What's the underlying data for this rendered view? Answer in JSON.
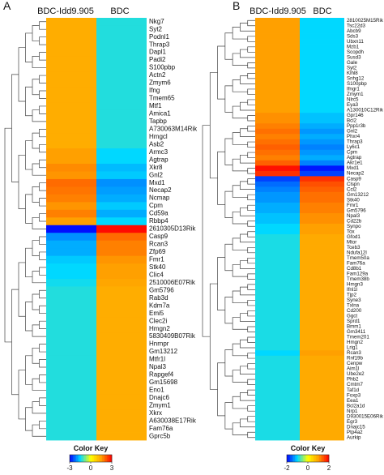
{
  "chart_data": [
    {
      "type": "heatmap",
      "panel_label": "A",
      "columns": [
        "BDC-Idd9.905",
        "BDC"
      ],
      "rows": [
        {
          "gene": "Nkg7",
          "values": [
            1.3,
            -1.3
          ]
        },
        {
          "gene": "Syt2",
          "values": [
            1.3,
            -1.3
          ]
        },
        {
          "gene": "Podnl1",
          "values": [
            1.3,
            -1.3
          ]
        },
        {
          "gene": "Thrap3",
          "values": [
            1.3,
            -1.3
          ]
        },
        {
          "gene": "Dapl1",
          "values": [
            1.3,
            -1.3
          ]
        },
        {
          "gene": "Padi2",
          "values": [
            1.3,
            -1.3
          ]
        },
        {
          "gene": "S100pbp",
          "values": [
            1.3,
            -1.3
          ]
        },
        {
          "gene": "Actn2",
          "values": [
            1.3,
            -1.3
          ]
        },
        {
          "gene": "Zmym6",
          "values": [
            1.3,
            -1.3
          ]
        },
        {
          "gene": "Ifng",
          "values": [
            1.3,
            -1.3
          ]
        },
        {
          "gene": "Tmem65",
          "values": [
            1.3,
            -1.3
          ]
        },
        {
          "gene": "Mtf1",
          "values": [
            1.3,
            -1.3
          ]
        },
        {
          "gene": "Amica1",
          "values": [
            1.3,
            -1.3
          ]
        },
        {
          "gene": "Tapbp",
          "values": [
            1.3,
            -1.3
          ]
        },
        {
          "gene": "A730063M14Rik",
          "values": [
            1.3,
            -1.3
          ]
        },
        {
          "gene": "Hmgcl",
          "values": [
            1.3,
            -1.3
          ]
        },
        {
          "gene": "Asb2",
          "values": [
            1.3,
            -1.3
          ]
        },
        {
          "gene": "Armc3",
          "values": [
            1.5,
            -1.5
          ]
        },
        {
          "gene": "Agtrap",
          "values": [
            1.5,
            -1.5
          ]
        },
        {
          "gene": "Xkr8",
          "values": [
            1.7,
            -1.7
          ]
        },
        {
          "gene": "Gnl2",
          "values": [
            1.6,
            -1.6
          ]
        },
        {
          "gene": "Mxd1",
          "values": [
            2.0,
            -2.0
          ]
        },
        {
          "gene": "Necap2",
          "values": [
            1.9,
            -1.9
          ]
        },
        {
          "gene": "Ncmap",
          "values": [
            1.8,
            -1.8
          ]
        },
        {
          "gene": "Cpm",
          "values": [
            1.6,
            -1.6
          ]
        },
        {
          "gene": "Cd59a",
          "values": [
            1.8,
            -1.8
          ]
        },
        {
          "gene": "Rbbp4",
          "values": [
            1.5,
            -1.5
          ]
        },
        {
          "gene": "2610305D13Rik",
          "values": [
            -2.9,
            2.9
          ]
        },
        {
          "gene": "Casp9",
          "values": [
            -2.0,
            2.0
          ]
        },
        {
          "gene": "Rcan3",
          "values": [
            -1.8,
            1.8
          ]
        },
        {
          "gene": "Zfp69",
          "values": [
            -1.8,
            1.8
          ]
        },
        {
          "gene": "Fmr1",
          "values": [
            -1.6,
            1.6
          ]
        },
        {
          "gene": "Stk40",
          "values": [
            -1.5,
            1.5
          ]
        },
        {
          "gene": "Clic4",
          "values": [
            -1.5,
            1.5
          ]
        },
        {
          "gene": "2510006E07Rik",
          "values": [
            -1.4,
            1.4
          ]
        },
        {
          "gene": "Gm5796",
          "values": [
            -1.3,
            1.3
          ]
        },
        {
          "gene": "Rab3d",
          "values": [
            -1.3,
            1.3
          ]
        },
        {
          "gene": "Kdm7a",
          "values": [
            -1.3,
            1.3
          ]
        },
        {
          "gene": "Emi5",
          "values": [
            -1.3,
            1.3
          ]
        },
        {
          "gene": "Clec2i",
          "values": [
            -1.3,
            1.3
          ]
        },
        {
          "gene": "Hmgn2",
          "values": [
            -1.3,
            1.3
          ]
        },
        {
          "gene": "5830409B07Rik",
          "values": [
            -1.3,
            1.3
          ]
        },
        {
          "gene": "Hnrnpr",
          "values": [
            -1.3,
            1.3
          ]
        },
        {
          "gene": "Gm13212",
          "values": [
            -1.3,
            1.3
          ]
        },
        {
          "gene": "Mtfr1l",
          "values": [
            -1.3,
            1.3
          ]
        },
        {
          "gene": "Npal3",
          "values": [
            -1.3,
            1.3
          ]
        },
        {
          "gene": "Rapgef4",
          "values": [
            -1.3,
            1.3
          ]
        },
        {
          "gene": "Gm15698",
          "values": [
            -1.3,
            1.3
          ]
        },
        {
          "gene": "Eno1",
          "values": [
            -1.3,
            1.3
          ]
        },
        {
          "gene": "Dnajc6",
          "values": [
            -1.3,
            1.3
          ]
        },
        {
          "gene": "Zmym1",
          "values": [
            -1.3,
            1.3
          ]
        },
        {
          "gene": "Xkrx",
          "values": [
            -1.3,
            1.3
          ]
        },
        {
          "gene": "A630038E17Rik",
          "values": [
            -1.3,
            1.3
          ]
        },
        {
          "gene": "Fam76a",
          "values": [
            -1.3,
            1.3
          ]
        },
        {
          "gene": "Gprc5b",
          "values": [
            -1.3,
            1.3
          ]
        }
      ],
      "color_key": {
        "title": "Color Key",
        "ticks": [
          -3,
          0,
          3
        ],
        "range": [
          -3,
          3
        ]
      },
      "colors": {
        "low": "#0000ff",
        "mid_low": "#00d8ff",
        "mid": "#ffff00",
        "mid_high": "#ffa000",
        "high": "#ff0000"
      }
    },
    {
      "type": "heatmap",
      "panel_label": "B",
      "columns": [
        "BDC-Idd9.905",
        "BDC"
      ],
      "rows": [
        {
          "gene": "2810025M15Rik",
          "values": [
            1.0,
            -1.0
          ]
        },
        {
          "gene": "Tsc22d3",
          "values": [
            1.0,
            -1.0
          ]
        },
        {
          "gene": "Abcb9",
          "values": [
            1.0,
            -1.0
          ]
        },
        {
          "gene": "Sds3",
          "values": [
            1.0,
            -1.0
          ]
        },
        {
          "gene": "Ubxn11",
          "values": [
            1.0,
            -1.0
          ]
        },
        {
          "gene": "Mzb1",
          "values": [
            1.0,
            -1.0
          ]
        },
        {
          "gene": "Scopdh",
          "values": [
            1.0,
            -1.0
          ]
        },
        {
          "gene": "Susd3",
          "values": [
            1.0,
            -1.0
          ]
        },
        {
          "gene": "Gale",
          "values": [
            1.0,
            -1.0
          ]
        },
        {
          "gene": "Syt2",
          "values": [
            1.0,
            -1.0
          ]
        },
        {
          "gene": "Klhl8",
          "values": [
            1.0,
            -1.0
          ]
        },
        {
          "gene": "Snhg12",
          "values": [
            1.0,
            -1.0
          ]
        },
        {
          "gene": "S100pbp",
          "values": [
            1.0,
            -1.0
          ]
        },
        {
          "gene": "Ifngr1",
          "values": [
            1.0,
            -1.0
          ]
        },
        {
          "gene": "Zmym1",
          "values": [
            1.0,
            -1.0
          ]
        },
        {
          "gene": "Nlrc5",
          "values": [
            1.0,
            -1.0
          ]
        },
        {
          "gene": "Eya3",
          "values": [
            1.0,
            -1.0
          ]
        },
        {
          "gene": "A130010C12Rik",
          "values": [
            1.0,
            -1.0
          ]
        },
        {
          "gene": "Gpr146",
          "values": [
            1.1,
            -1.1
          ]
        },
        {
          "gene": "Bcl2",
          "values": [
            1.1,
            -1.1
          ]
        },
        {
          "gene": "Ppp1r3b",
          "values": [
            1.2,
            -1.2
          ]
        },
        {
          "gene": "Gnl2",
          "values": [
            1.3,
            -1.3
          ]
        },
        {
          "gene": "Phxr4",
          "values": [
            1.2,
            -1.2
          ]
        },
        {
          "gene": "Thrap3",
          "values": [
            1.3,
            -1.3
          ]
        },
        {
          "gene": "Ly6c1",
          "values": [
            1.4,
            -1.4
          ]
        },
        {
          "gene": "Cpm",
          "values": [
            1.3,
            -1.3
          ]
        },
        {
          "gene": "Agtrap",
          "values": [
            1.2,
            -1.2
          ]
        },
        {
          "gene": "Akr1e1",
          "values": [
            1.4,
            -1.4
          ]
        },
        {
          "gene": "Mxd1",
          "values": [
            1.9,
            -1.9
          ]
        },
        {
          "gene": "Necap2",
          "values": [
            1.7,
            -1.7
          ]
        },
        {
          "gene": "Casp9",
          "values": [
            -1.7,
            1.7
          ]
        },
        {
          "gene": "Clspn",
          "values": [
            -1.5,
            1.5
          ]
        },
        {
          "gene": "Ccl2",
          "values": [
            -1.4,
            1.4
          ]
        },
        {
          "gene": "Gm13212",
          "values": [
            -1.3,
            1.3
          ]
        },
        {
          "gene": "Stk40",
          "values": [
            -1.3,
            1.3
          ]
        },
        {
          "gene": "Fmr1",
          "values": [
            -1.2,
            1.2
          ]
        },
        {
          "gene": "Gm5796",
          "values": [
            -1.2,
            1.2
          ]
        },
        {
          "gene": "Npal3",
          "values": [
            -1.1,
            1.1
          ]
        },
        {
          "gene": "Cd22b",
          "values": [
            -1.1,
            1.1
          ]
        },
        {
          "gene": "Synpo",
          "values": [
            -1.0,
            1.0
          ]
        },
        {
          "gene": "Tox",
          "values": [
            -1.0,
            1.0
          ]
        },
        {
          "gene": "Gfod1",
          "values": [
            -0.9,
            0.9
          ]
        },
        {
          "gene": "Mtor",
          "values": [
            -0.9,
            0.9
          ]
        },
        {
          "gene": "Tceb3",
          "values": [
            -0.9,
            0.9
          ]
        },
        {
          "gene": "Ndufa12l",
          "values": [
            -0.9,
            0.9
          ]
        },
        {
          "gene": "Tmem50a",
          "values": [
            -0.9,
            0.9
          ]
        },
        {
          "gene": "Fam76a",
          "values": [
            -0.9,
            0.9
          ]
        },
        {
          "gene": "Cd8b1",
          "values": [
            -0.9,
            0.9
          ]
        },
        {
          "gene": "Fam129a",
          "values": [
            -0.9,
            0.9
          ]
        },
        {
          "gene": "Tmem38b",
          "values": [
            -0.9,
            0.9
          ]
        },
        {
          "gene": "Hmgn3",
          "values": [
            -0.9,
            0.9
          ]
        },
        {
          "gene": "Ifnl1l",
          "values": [
            -0.9,
            0.9
          ]
        },
        {
          "gene": "Tjp2",
          "values": [
            -0.9,
            0.9
          ]
        },
        {
          "gene": "Syne3",
          "values": [
            -0.9,
            0.9
          ]
        },
        {
          "gene": "Txlna",
          "values": [
            -0.9,
            0.9
          ]
        },
        {
          "gene": "Cd200",
          "values": [
            -0.9,
            0.9
          ]
        },
        {
          "gene": "Ggct",
          "values": [
            -0.9,
            0.9
          ]
        },
        {
          "gene": "Sprd1",
          "values": [
            -0.9,
            0.9
          ]
        },
        {
          "gene": "Bmm1",
          "values": [
            -0.9,
            0.9
          ]
        },
        {
          "gene": "Gm3411",
          "values": [
            -0.9,
            0.9
          ]
        },
        {
          "gene": "Tmem201",
          "values": [
            -0.9,
            0.9
          ]
        },
        {
          "gene": "Hmgn2",
          "values": [
            -0.9,
            0.9
          ]
        },
        {
          "gene": "Lrig1",
          "values": [
            -0.9,
            0.9
          ]
        },
        {
          "gene": "Rcan3",
          "values": [
            -1.0,
            1.0
          ]
        },
        {
          "gene": "Rnf19b",
          "values": [
            -0.9,
            0.9
          ]
        },
        {
          "gene": "Cenpw",
          "values": [
            -0.9,
            0.9
          ]
        },
        {
          "gene": "Aim1l",
          "values": [
            -0.9,
            0.9
          ]
        },
        {
          "gene": "Ube2e2",
          "values": [
            -0.9,
            0.9
          ]
        },
        {
          "gene": "Phb2",
          "values": [
            -0.9,
            0.9
          ]
        },
        {
          "gene": "Cmtm7",
          "values": [
            -0.9,
            0.9
          ]
        },
        {
          "gene": "Taf1d",
          "values": [
            -0.9,
            0.9
          ]
        },
        {
          "gene": "Foxp3",
          "values": [
            -0.9,
            0.9
          ]
        },
        {
          "gene": "Eea1",
          "values": [
            -0.9,
            0.9
          ]
        },
        {
          "gene": "Bcl2a1d",
          "values": [
            -0.9,
            0.9
          ]
        },
        {
          "gene": "Nrp1",
          "values": [
            -0.9,
            0.9
          ]
        },
        {
          "gene": "D930015E06Rik",
          "values": [
            -0.9,
            0.9
          ]
        },
        {
          "gene": "Egr3",
          "values": [
            -0.9,
            0.9
          ]
        },
        {
          "gene": "Dnajc15",
          "values": [
            -0.9,
            0.9
          ]
        },
        {
          "gene": "Ptp4a2",
          "values": [
            -0.9,
            0.9
          ]
        },
        {
          "gene": "Aurkip",
          "values": [
            -0.9,
            0.9
          ]
        }
      ],
      "color_key": {
        "title": "Color Key",
        "ticks": [
          -2,
          0,
          2
        ],
        "range": [
          -2,
          2
        ]
      },
      "colors": {
        "low": "#0000ff",
        "mid_low": "#00d8ff",
        "mid": "#ffff00",
        "mid_high": "#ffa000",
        "high": "#ff0000"
      }
    }
  ]
}
